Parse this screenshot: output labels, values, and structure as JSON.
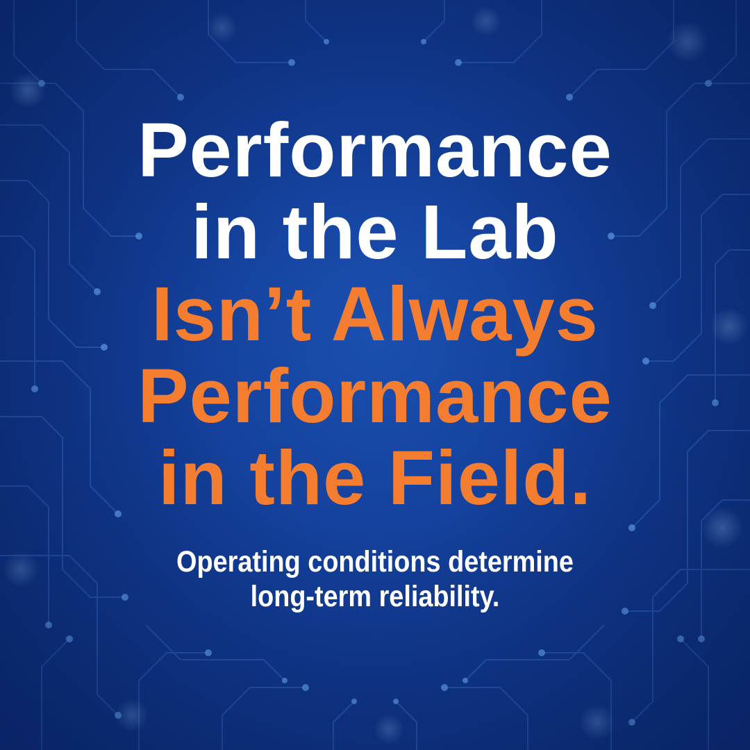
{
  "headline": {
    "line1": "Performance",
    "line2": "in the Lab",
    "line3": "Isn’t Always",
    "line4": "Performance",
    "line5": "in the Field."
  },
  "subline": {
    "line1": "Operating conditions determine",
    "line2": "long-term reliability."
  },
  "colors": {
    "background": "#123d96",
    "headline_white": "#ffffff",
    "headline_accent": "#f47d2f",
    "circuit_trace": "#3f7fe0",
    "circuit_node": "#6fb0ff"
  },
  "background_graphic": "circuit-board-pattern"
}
